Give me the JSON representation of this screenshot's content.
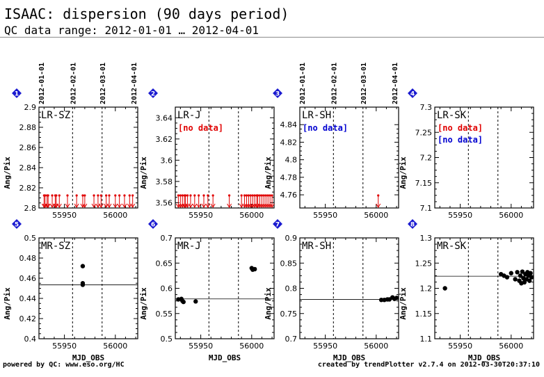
{
  "header": {
    "title": "ISAAC: dispersion (90 days period)",
    "subtitle": "QC data range: 2012-01-01 … 2012-04-01"
  },
  "footer": {
    "left": "powered by QC: www.eso.org/HC",
    "right": "created by trendPlotter v2.7.4 on 2012-03-30T20:37:10"
  },
  "colors": {
    "badge": "#1a1ad0",
    "no_data_red": "#e00000",
    "no_data_blue": "#0000d0",
    "outlier": "#e00000"
  },
  "chart_data": [
    {
      "type": "scatter",
      "badge": "1",
      "label": "LR-SZ",
      "ylabel": "Ang/Pix",
      "xlabel": "",
      "xlim": [
        55925,
        56022
      ],
      "ylim": [
        2.8,
        2.9
      ],
      "yticks": [
        "2.8",
        "2.82",
        "2.84",
        "2.86",
        "2.88",
        "2.9"
      ],
      "xticks": [
        "55950",
        "56000"
      ],
      "date_ticks": [
        {
          "x": 55927,
          "label": "2012-01-01"
        },
        {
          "x": 55958,
          "label": "2012-02-01"
        },
        {
          "x": 55987,
          "label": "2012-03-01"
        },
        {
          "x": 56018,
          "label": "2012-04-01"
        }
      ],
      "refline": null,
      "no_data": [],
      "points": [],
      "outliers_below": [
        55930,
        55931,
        55933,
        55934,
        55938,
        55941,
        55942,
        55945,
        55953,
        55962,
        55968,
        55970,
        55979,
        55983,
        55986,
        55991,
        55994,
        56000,
        56004,
        56009,
        56014,
        56017
      ]
    },
    {
      "type": "scatter",
      "badge": "2",
      "label": "LR-J",
      "ylabel": "Ang/Pix",
      "xlabel": "",
      "xlim": [
        55925,
        56022
      ],
      "ylim": [
        3.555,
        3.65
      ],
      "yticks": [
        "3.56",
        "3.58",
        "3.6",
        "3.62",
        "3.64"
      ],
      "xticks": [
        "55950",
        "56000"
      ],
      "date_ticks": [],
      "refline": null,
      "no_data": [
        {
          "text": "[no data]",
          "color": "red"
        }
      ],
      "points": [],
      "outliers_below": [
        55928,
        55930,
        55932,
        55934,
        55935,
        55937,
        55940,
        55944,
        55948,
        55953,
        55957,
        55962,
        55978,
        55990,
        55993,
        55995,
        55997,
        55999,
        56001,
        56003,
        56005,
        56006,
        56008,
        56010,
        56012,
        56014,
        56016,
        56018,
        56020
      ]
    },
    {
      "type": "scatter",
      "badge": "3",
      "label": "LR-SH",
      "ylabel": "Ang/Pix",
      "xlabel": "",
      "xlim": [
        55925,
        56022
      ],
      "ylim": [
        4.745,
        4.86
      ],
      "yticks": [
        "4.76",
        "4.78",
        "4.8",
        "4.82",
        "4.84"
      ],
      "xticks": [
        "55950",
        "56000"
      ],
      "date_ticks": [
        {
          "x": 55927,
          "label": "2012-01-01"
        },
        {
          "x": 55958,
          "label": "2012-02-01"
        },
        {
          "x": 55987,
          "label": "2012-03-01"
        },
        {
          "x": 56018,
          "label": "2012-04-01"
        }
      ],
      "refline": null,
      "no_data": [
        {
          "text": "[no data]",
          "color": "blue"
        }
      ],
      "points": [],
      "outliers_below": [
        56002
      ]
    },
    {
      "type": "scatter",
      "badge": "4",
      "label": "LR-SK",
      "ylabel": "Ang/Pix",
      "xlabel": "",
      "xlim": [
        55925,
        56022
      ],
      "ylim": [
        7.1,
        7.3
      ],
      "yticks": [
        "7.1",
        "7.15",
        "7.2",
        "7.25",
        "7.3"
      ],
      "xticks": [
        "55950",
        "56000"
      ],
      "date_ticks": [],
      "refline": null,
      "no_data": [
        {
          "text": "[no data]",
          "color": "red"
        },
        {
          "text": "[no data]",
          "color": "blue"
        }
      ],
      "points": [],
      "outliers_below": []
    },
    {
      "type": "scatter",
      "badge": "5",
      "label": "MR-SZ",
      "ylabel": "Ang/Pix",
      "xlabel": "MJD_OBS",
      "xlim": [
        55925,
        56022
      ],
      "ylim": [
        0.4,
        0.5
      ],
      "yticks": [
        "0.4",
        "0.42",
        "0.44",
        "0.46",
        "0.48",
        "0.5"
      ],
      "xticks": [
        "55950",
        "56000"
      ],
      "date_ticks": [],
      "refline": 0.4535,
      "no_data": [],
      "points": [
        [
          55968,
          0.472
        ],
        [
          55968,
          0.455
        ],
        [
          55968,
          0.4535
        ]
      ],
      "outliers_below": []
    },
    {
      "type": "scatter",
      "badge": "6",
      "label": "MR-J",
      "ylabel": "Ang/Pix",
      "xlabel": "MJD_OBS",
      "xlim": [
        55925,
        56022
      ],
      "ylim": [
        0.5,
        0.7
      ],
      "yticks": [
        "0.5",
        "0.55",
        "0.6",
        "0.65",
        "0.7"
      ],
      "xticks": [
        "55950",
        "56000"
      ],
      "date_ticks": [],
      "refline": 0.579,
      "no_data": [],
      "points": [
        [
          55928,
          0.578
        ],
        [
          55931,
          0.579
        ],
        [
          55932,
          0.575
        ],
        [
          55933,
          0.573
        ],
        [
          55945,
          0.574
        ],
        [
          56000,
          0.64
        ],
        [
          56001,
          0.637
        ],
        [
          56003,
          0.638
        ]
      ],
      "outliers_below": []
    },
    {
      "type": "scatter",
      "badge": "7",
      "label": "MR-SH",
      "ylabel": "Ang/Pix",
      "xlabel": "MJD_OBS",
      "xlim": [
        55925,
        56022
      ],
      "ylim": [
        0.7,
        0.9
      ],
      "yticks": [
        "0.7",
        "0.75",
        "0.8",
        "0.85",
        "0.9"
      ],
      "xticks": [
        "55950",
        "56000"
      ],
      "date_ticks": [],
      "refline": 0.778,
      "no_data": [],
      "points": [
        [
          56005,
          0.777
        ],
        [
          56008,
          0.777
        ],
        [
          56011,
          0.778
        ],
        [
          56013,
          0.778
        ],
        [
          56016,
          0.782
        ],
        [
          56018,
          0.779
        ],
        [
          56020,
          0.781
        ]
      ],
      "outliers_below": []
    },
    {
      "type": "scatter",
      "badge": "8",
      "label": "MR-SK",
      "ylabel": "Ang/Pix",
      "xlabel": "MJD_OBS",
      "xlim": [
        55925,
        56022
      ],
      "ylim": [
        1.1,
        1.3
      ],
      "yticks": [
        "1.1",
        "1.15",
        "1.2",
        "1.25",
        "1.3"
      ],
      "xticks": [
        "55950",
        "56000"
      ],
      "date_ticks": [],
      "refline": 1.224,
      "no_data": [],
      "points": [
        [
          55935,
          1.2
        ],
        [
          55990,
          1.228
        ],
        [
          55993,
          1.225
        ],
        [
          55996,
          1.222
        ],
        [
          56000,
          1.23
        ],
        [
          56004,
          1.218
        ],
        [
          56006,
          1.232
        ],
        [
          56008,
          1.215
        ],
        [
          56009,
          1.225
        ],
        [
          56010,
          1.21
        ],
        [
          56011,
          1.233
        ],
        [
          56012,
          1.22
        ],
        [
          56013,
          1.212
        ],
        [
          56014,
          1.228
        ],
        [
          56015,
          1.218
        ],
        [
          56016,
          1.232
        ],
        [
          56017,
          1.225
        ],
        [
          56018,
          1.215
        ],
        [
          56019,
          1.23
        ],
        [
          56020,
          1.222
        ]
      ],
      "outliers_below": []
    }
  ]
}
